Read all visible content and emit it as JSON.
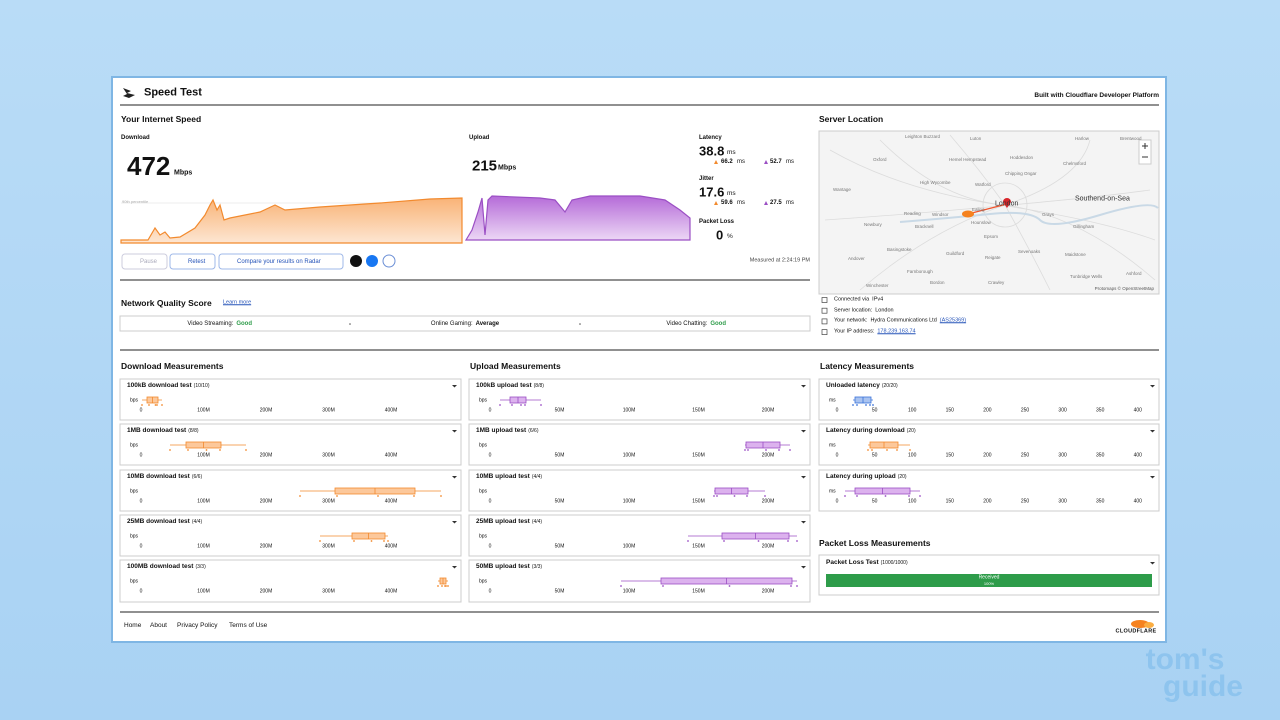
{
  "header": {
    "title": "Speed Test",
    "built": "Built with Cloudflare Developer Platform"
  },
  "speed": {
    "heading": "Your Internet Speed",
    "download": {
      "label": "Download",
      "value": 472,
      "unit": "Mbps"
    },
    "upload": {
      "label": "Upload",
      "value": 215,
      "unit": "Mbps"
    },
    "percentile_label": "90th percentile",
    "latency": {
      "label": "Latency",
      "value": 38.8,
      "unit": "ms",
      "down": 66.2,
      "up": 52.7
    },
    "jitter": {
      "label": "Jitter",
      "value": 17.6,
      "unit": "ms",
      "down": 59.6,
      "up": 27.5
    },
    "packet_loss": {
      "label": "Packet Loss",
      "value": 0,
      "unit": "%"
    },
    "buttons": [
      "Pause",
      "Retest",
      "Compare your results on Radar"
    ],
    "measured": "Measured at 2:24:19 PM"
  },
  "quality": {
    "heading": "Network Quality Score",
    "link": "Learn more",
    "items": [
      {
        "label": "Video Streaming:",
        "rating": "Good"
      },
      {
        "label": "Online Gaming:",
        "rating": "Average"
      },
      {
        "label": "Video Chatting:",
        "rating": "Good"
      }
    ]
  },
  "server": {
    "heading": "Server Location",
    "map_labels": [
      "Leighton Buzzard",
      "Luton",
      "Harlow",
      "Brentwood",
      "Oxford",
      "Hemel Hempstead",
      "Hoddesdon",
      "Chelmsford",
      "High Wycombe",
      "Watford",
      "Chipping Ongar",
      "Wantage",
      "Reading",
      "Windsor",
      "Ealing",
      "London",
      "Grays",
      "Southend-on-Sea",
      "Newbury",
      "Bracknell",
      "Hounslow",
      "Epsom",
      "Gillingham",
      "Basingstoke",
      "Guildford",
      "Reigate",
      "Sevenoaks",
      "Maidstone",
      "Andover",
      "Farnborough",
      "Tunbridge Wells",
      "Ashford",
      "Winchester",
      "Bordon",
      "Crawley"
    ],
    "attribution": "Protomaps © OpenStreetMap",
    "info": [
      {
        "label": "Connected via",
        "value": "IPv4"
      },
      {
        "label": "Server location:",
        "value": "London"
      },
      {
        "label": "Your network:",
        "value": "Hydra Communications Ltd",
        "link": "(AS25369)"
      },
      {
        "label": "Your IP address:",
        "link": "178.239.163.74"
      }
    ]
  },
  "measurements": [
    {
      "heading": "Download Measurements",
      "unit": "bps",
      "ticks": [
        "0",
        "100M",
        "200M",
        "300M",
        "400M"
      ],
      "rows": [
        {
          "title": "100kB download test",
          "count": "(10/10)"
        },
        {
          "title": "1MB download test",
          "count": "(8/8)"
        },
        {
          "title": "10MB download test",
          "count": "(6/6)"
        },
        {
          "title": "25MB download test",
          "count": "(4/4)"
        },
        {
          "title": "100MB download test",
          "count": "(3/3)"
        }
      ]
    },
    {
      "heading": "Upload Measurements",
      "unit": "bps",
      "ticks": [
        "0",
        "50M",
        "100M",
        "150M",
        "200M"
      ],
      "rows": [
        {
          "title": "100kB upload test",
          "count": "(8/8)"
        },
        {
          "title": "1MB upload test",
          "count": "(6/6)"
        },
        {
          "title": "10MB upload test",
          "count": "(4/4)"
        },
        {
          "title": "25MB upload test",
          "count": "(4/4)"
        },
        {
          "title": "50MB upload test",
          "count": "(3/3)"
        }
      ]
    },
    {
      "heading": "Latency Measurements",
      "unit": "ms",
      "ticks": [
        "0",
        "50",
        "100",
        "150",
        "200",
        "250",
        "300",
        "350",
        "400"
      ],
      "rows": [
        {
          "title": "Unloaded latency",
          "count": "(20/20)"
        },
        {
          "title": "Latency during download",
          "count": "(20)"
        },
        {
          "title": "Latency during upload",
          "count": "(20)"
        }
      ]
    }
  ],
  "packet_loss_measurements": {
    "heading": "Packet Loss Measurements",
    "row_title": "Packet Loss Test",
    "count": "(1000/1000)",
    "bar_label": "Received",
    "bar_value": "100%"
  },
  "footer": {
    "links": [
      "Home",
      "About",
      "Privacy Policy",
      "Terms of Use"
    ],
    "brand": "CLOUDFLARE"
  },
  "watermark": [
    "tom's",
    "guide"
  ]
}
